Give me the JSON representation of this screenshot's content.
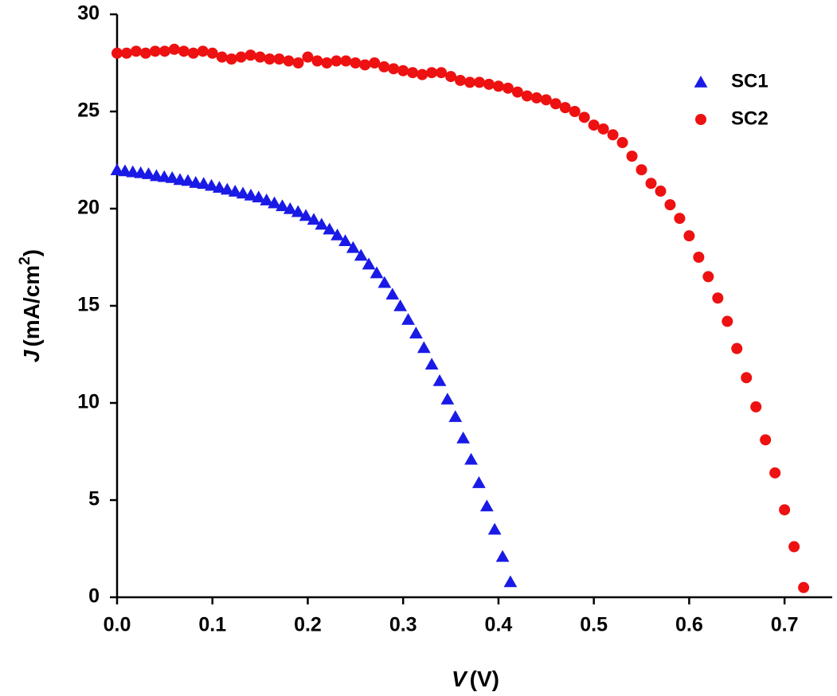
{
  "chart_data": {
    "type": "scatter",
    "x_label": {
      "symbol": "V",
      "unit": "(V)"
    },
    "y_label": {
      "symbol": "J",
      "unit": "(mA/cm",
      "superscript": "2",
      "close": ")"
    },
    "xlim": [
      0,
      0.75
    ],
    "ylim": [
      0,
      30
    ],
    "xticks": [
      {
        "value": 0,
        "label": "0.0"
      },
      0.1,
      0.2,
      0.3,
      0.4,
      0.5,
      0.6,
      0.7
    ],
    "yticks": [
      0,
      5,
      10,
      15,
      20,
      25,
      30
    ],
    "legend": "upper right",
    "series": [
      {
        "name": "SC1",
        "color": "#1a1ae6",
        "marker": "triangle",
        "x": [
          0,
          0.0083,
          0.0165,
          0.0248,
          0.033,
          0.0413,
          0.0495,
          0.0578,
          0.066,
          0.0743,
          0.0825,
          0.0908,
          0.099,
          0.1073,
          0.1155,
          0.1238,
          0.132,
          0.1403,
          0.1485,
          0.1568,
          0.165,
          0.1733,
          0.1815,
          0.1898,
          0.198,
          0.2063,
          0.2145,
          0.2228,
          0.231,
          0.2393,
          0.2475,
          0.2558,
          0.264,
          0.2723,
          0.2805,
          0.2888,
          0.297,
          0.3053,
          0.3135,
          0.3218,
          0.33,
          0.3383,
          0.3465,
          0.3548,
          0.363,
          0.3713,
          0.3795,
          0.3878,
          0.396,
          0.4043,
          0.4125
        ],
        "values": [
          22.0,
          21.95,
          21.9,
          21.85,
          21.8,
          21.7,
          21.65,
          21.6,
          21.5,
          21.45,
          21.35,
          21.3,
          21.2,
          21.1,
          21.0,
          20.9,
          20.8,
          20.7,
          20.6,
          20.45,
          20.3,
          20.15,
          20.0,
          19.85,
          19.65,
          19.45,
          19.2,
          18.95,
          18.65,
          18.35,
          18.0,
          17.6,
          17.15,
          16.7,
          16.2,
          15.6,
          15.0,
          14.3,
          13.6,
          12.85,
          12.0,
          11.15,
          10.2,
          9.3,
          8.2,
          7.1,
          5.9,
          4.7,
          3.5,
          2.1,
          0.8
        ]
      },
      {
        "name": "SC2",
        "color": "#ee1111",
        "marker": "circle",
        "x": [
          0,
          0.01,
          0.02,
          0.03,
          0.04,
          0.05,
          0.06,
          0.07,
          0.08,
          0.09,
          0.1,
          0.11,
          0.12,
          0.13,
          0.14,
          0.15,
          0.16,
          0.17,
          0.18,
          0.19,
          0.2,
          0.21,
          0.22,
          0.23,
          0.24,
          0.25,
          0.26,
          0.27,
          0.28,
          0.29,
          0.3,
          0.31,
          0.32,
          0.33,
          0.34,
          0.35,
          0.36,
          0.37,
          0.38,
          0.39,
          0.4,
          0.41,
          0.42,
          0.43,
          0.44,
          0.45,
          0.46,
          0.47,
          0.48,
          0.49,
          0.5,
          0.51,
          0.52,
          0.53,
          0.54,
          0.55,
          0.56,
          0.57,
          0.58,
          0.59,
          0.6,
          0.61,
          0.62,
          0.63,
          0.64,
          0.65,
          0.66,
          0.67,
          0.68,
          0.69,
          0.7,
          0.71,
          0.72
        ],
        "values": [
          28.0,
          28.0,
          28.1,
          28.0,
          28.1,
          28.1,
          28.2,
          28.1,
          28.0,
          28.1,
          28.0,
          27.8,
          27.7,
          27.8,
          27.9,
          27.8,
          27.7,
          27.7,
          27.6,
          27.5,
          27.8,
          27.6,
          27.5,
          27.6,
          27.6,
          27.5,
          27.4,
          27.5,
          27.3,
          27.2,
          27.1,
          27.0,
          26.9,
          27.0,
          27.0,
          26.8,
          26.6,
          26.5,
          26.5,
          26.4,
          26.3,
          26.2,
          26.0,
          25.8,
          25.7,
          25.6,
          25.4,
          25.2,
          25.0,
          24.7,
          24.3,
          24.1,
          23.8,
          23.4,
          22.7,
          22.0,
          21.3,
          20.9,
          20.2,
          19.5,
          18.6,
          17.5,
          16.5,
          15.4,
          14.2,
          12.8,
          11.3,
          9.8,
          8.1,
          6.4,
          4.5,
          2.6,
          0.5
        ]
      }
    ]
  }
}
